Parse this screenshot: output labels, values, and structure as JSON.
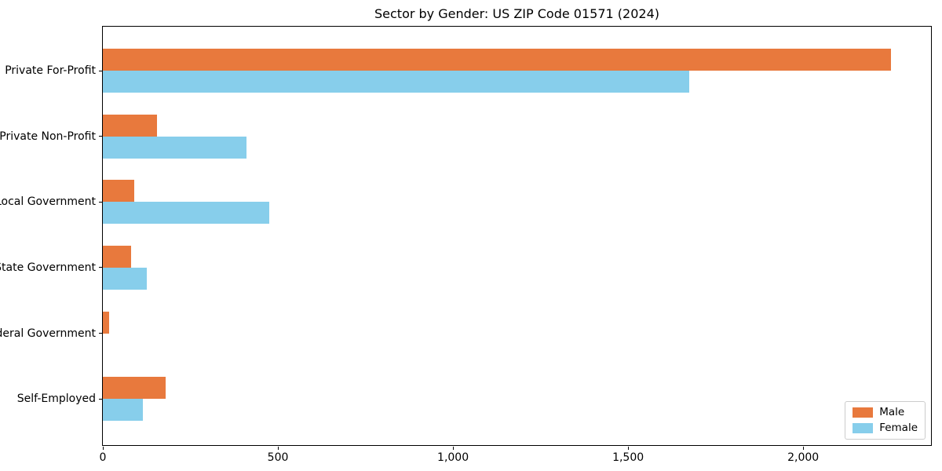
{
  "chart_data": {
    "type": "bar",
    "orientation": "horizontal",
    "title": "Sector by Gender: US ZIP Code 01571 (2024)",
    "xlabel": "",
    "ylabel": "",
    "categories": [
      "Private For-Profit",
      "Private Non-Profit",
      "Local Government",
      "State Government",
      "Federal Government",
      "Self-Employed"
    ],
    "series": [
      {
        "name": "Male",
        "color": "#E8793D",
        "values": [
          2250,
          155,
          90,
          80,
          18,
          180
        ]
      },
      {
        "name": "Female",
        "color": "#87CEEB",
        "values": [
          1675,
          410,
          475,
          125,
          0,
          115
        ]
      }
    ],
    "xlim": [
      0,
      2365
    ],
    "xticks": [
      0,
      500,
      1000,
      1500,
      2000
    ],
    "xtick_labels": [
      "0",
      "500",
      "1,000",
      "1,500",
      "2,000"
    ],
    "grid": false,
    "legend": {
      "position": "lower right",
      "entries": [
        "Male",
        "Female"
      ]
    }
  }
}
